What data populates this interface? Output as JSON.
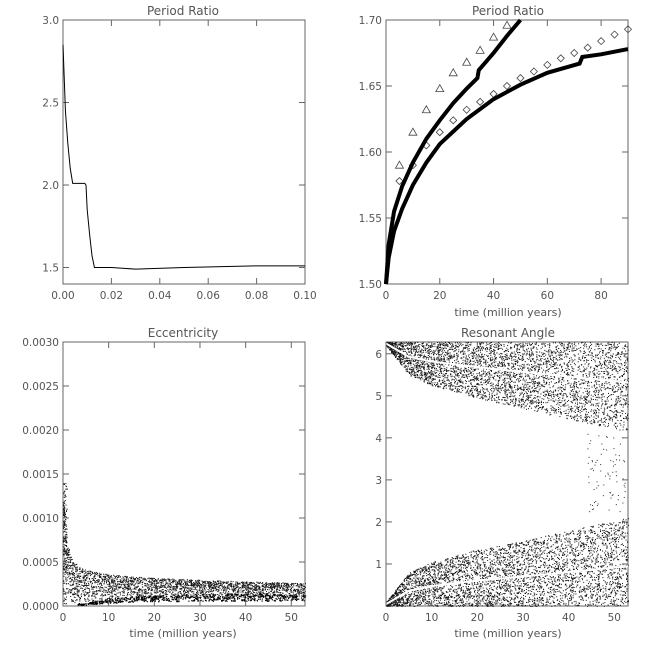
{
  "chart_data": [
    {
      "type": "line",
      "title": "Period Ratio",
      "xlabel": "",
      "ylabel": "",
      "xlim": [
        0,
        0.1
      ],
      "ylim": [
        1.4,
        3.0
      ],
      "xticks": [
        "0.00",
        "0.02",
        "0.04",
        "0.06",
        "0.08",
        "0.10"
      ],
      "yticks": [
        "1.5",
        "2.0",
        "2.5",
        "3.0"
      ],
      "series": [
        {
          "x": [
            0.0,
            0.0005,
            0.001,
            0.002,
            0.003,
            0.004,
            0.009,
            0.0095,
            0.01,
            0.011,
            0.012,
            0.013,
            0.02,
            0.03,
            0.05,
            0.08,
            0.1
          ],
          "y": [
            2.85,
            2.65,
            2.45,
            2.25,
            2.1,
            2.01,
            2.01,
            2.0,
            1.85,
            1.7,
            1.57,
            1.5,
            1.5,
            1.49,
            1.5,
            1.51,
            1.51
          ]
        }
      ]
    },
    {
      "type": "line",
      "title": "Period Ratio",
      "xlabel": "time (million years)",
      "ylabel": "",
      "xlim": [
        0,
        90
      ],
      "ylim": [
        1.5,
        1.7
      ],
      "xticks": [
        "0",
        "20",
        "40",
        "60",
        "80"
      ],
      "yticks": [
        "1.50",
        "1.55",
        "1.60",
        "1.65",
        "1.70"
      ],
      "series": [
        {
          "marker": "triangle",
          "x": [
            5,
            10,
            15,
            20,
            25,
            30,
            35,
            40,
            45
          ],
          "y": [
            1.59,
            1.615,
            1.632,
            1.648,
            1.66,
            1.668,
            1.677,
            1.687,
            1.696
          ]
        },
        {
          "marker": "diamond",
          "x": [
            5,
            10,
            15,
            20,
            25,
            30,
            35,
            40,
            45,
            50,
            55,
            60,
            65,
            70,
            75,
            80,
            85,
            90
          ],
          "y": [
            1.578,
            1.59,
            1.605,
            1.615,
            1.624,
            1.632,
            1.638,
            1.644,
            1.65,
            1.656,
            1.661,
            1.666,
            1.671,
            1.675,
            1.679,
            1.684,
            1.689,
            1.693
          ]
        },
        {
          "marker": "thick-line",
          "x": [
            0,
            1,
            3,
            6,
            10,
            15,
            20,
            25,
            30,
            34,
            34.5,
            40,
            45,
            50
          ],
          "y": [
            1.5,
            1.53,
            1.555,
            1.574,
            1.592,
            1.61,
            1.624,
            1.637,
            1.648,
            1.656,
            1.662,
            1.675,
            1.688,
            1.7
          ]
        },
        {
          "marker": "thick-line",
          "x": [
            0,
            1,
            3,
            6,
            10,
            15,
            20,
            30,
            40,
            50,
            60,
            72,
            73,
            80,
            90
          ],
          "y": [
            1.5,
            1.52,
            1.54,
            1.557,
            1.575,
            1.592,
            1.606,
            1.625,
            1.64,
            1.651,
            1.66,
            1.667,
            1.672,
            1.674,
            1.678
          ]
        }
      ]
    },
    {
      "type": "scatter",
      "title": "Eccentricity",
      "xlabel": "time (million years)",
      "ylabel": "",
      "xlim": [
        0,
        53
      ],
      "ylim": [
        0,
        0.003
      ],
      "xticks": [
        "0",
        "10",
        "20",
        "30",
        "40",
        "50"
      ],
      "yticks": [
        "0.0000",
        "0.0005",
        "0.0010",
        "0.0015",
        "0.0020",
        "0.0025",
        "0.0030"
      ],
      "series": [
        {
          "name_hidden": "upper-envelope",
          "x": [
            0.2,
            1,
            2,
            4,
            7,
            10,
            15,
            20,
            30,
            40,
            53
          ],
          "y": [
            0.0012,
            0.0007,
            0.00052,
            0.00043,
            0.00039,
            0.00036,
            0.00034,
            0.00032,
            0.0003,
            0.00028,
            0.00026
          ]
        },
        {
          "name_hidden": "lower-envelope",
          "x": [
            0.2,
            1,
            2,
            4,
            7,
            10,
            15,
            20,
            30,
            40,
            53
          ],
          "y": [
            0.0004,
            0.00012,
            4e-05,
            2e-05,
            4e-05,
            6e-05,
            8e-05,
            9e-05,
            0.0001,
            0.0001,
            0.0001
          ]
        }
      ]
    },
    {
      "type": "scatter",
      "title": "Resonant Angle",
      "xlabel": "time (million years)",
      "ylabel": "",
      "xlim": [
        0,
        53
      ],
      "ylim": [
        0,
        6.28
      ],
      "xticks": [
        "0",
        "10",
        "20",
        "30",
        "40",
        "50"
      ],
      "yticks": [
        "1",
        "2",
        "3",
        "4",
        "5",
        "6"
      ],
      "series": [
        {
          "name_hidden": "lower-band-top",
          "x": [
            0,
            5,
            10,
            20,
            30,
            40,
            53
          ],
          "y": [
            0.1,
            0.8,
            1.05,
            1.35,
            1.55,
            1.8,
            2.1
          ]
        },
        {
          "name_hidden": "upper-band-bottom",
          "x": [
            0,
            5,
            10,
            20,
            30,
            40,
            53
          ],
          "y": [
            6.2,
            5.5,
            5.25,
            4.95,
            4.7,
            4.45,
            4.15
          ]
        }
      ]
    }
  ]
}
